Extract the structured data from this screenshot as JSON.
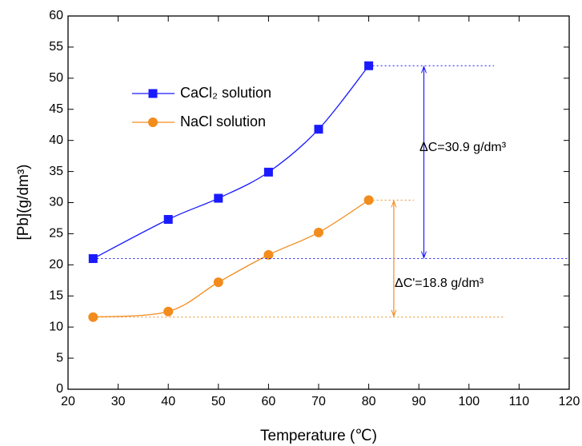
{
  "chart_data": {
    "type": "line",
    "x_label": "Temperature (℃)",
    "y_label": "[Pb](g/dm³)",
    "x": [
      25,
      40,
      50,
      60,
      70,
      80
    ],
    "series": [
      {
        "name": "CaCl₂ solution",
        "color": "#1a1aff",
        "marker": "square",
        "values": [
          21,
          27.3,
          30.7,
          34.9,
          41.8,
          52
        ]
      },
      {
        "name": "NaCl solution",
        "color": "#f28c1c",
        "marker": "circle",
        "values": [
          11.6,
          12.5,
          17.2,
          21.6,
          25.2,
          30.4
        ]
      }
    ],
    "annotations": [
      "ΔC=30.9 g/dm³",
      "ΔC'=18.8 g/dm³"
    ],
    "xlim": [
      20,
      120
    ],
    "xticks": [
      20,
      30,
      40,
      50,
      60,
      70,
      80,
      90,
      100,
      110,
      120
    ],
    "ylim": [
      0,
      60
    ],
    "yticks": [
      0,
      5,
      10,
      15,
      20,
      25,
      30,
      35,
      40,
      45,
      50,
      55,
      60
    ],
    "legend": "upper-left"
  }
}
